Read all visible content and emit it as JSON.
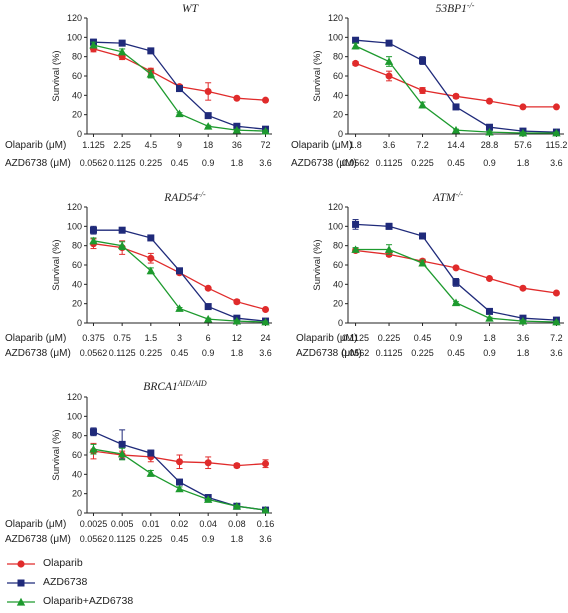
{
  "colors": {
    "Olaparib": "#e02b2b",
    "AZD6738": "#1f2a7a",
    "Olaparib+AZD6738": "#1d9a2e"
  },
  "legend": [
    {
      "name": "Olaparib",
      "marker": "circle"
    },
    {
      "name": "AZD6738",
      "marker": "square"
    },
    {
      "name": "Olaparib+AZD6738",
      "marker": "triangle"
    }
  ],
  "chart_data": [
    {
      "type": "line",
      "title": "WT",
      "title_sup": "",
      "ylabel": "Survival (%)",
      "ylim": [
        0,
        120
      ],
      "yticks": [
        0,
        20,
        40,
        60,
        80,
        100,
        120
      ],
      "row1_label": "Olaparib (μM)",
      "row2_label": "AZD6738 (μM)",
      "row1": [
        "1.125",
        "2.25",
        "4.5",
        "9",
        "18",
        "36",
        "72"
      ],
      "row2": [
        "0.0562",
        "0.1125",
        "0.225",
        "0.45",
        "0.9",
        "1.8",
        "3.6"
      ],
      "series": [
        {
          "name": "Olaparib",
          "values": [
            88,
            80,
            65,
            49,
            44,
            37,
            35
          ],
          "errors": [
            3,
            3,
            3,
            2,
            9,
            1,
            1
          ]
        },
        {
          "name": "AZD6738",
          "values": [
            95,
            94,
            86,
            47,
            19,
            8,
            5
          ],
          "errors": [
            3,
            2,
            1,
            2,
            2,
            2,
            2
          ]
        },
        {
          "name": "Olaparib+AZD6738",
          "values": [
            92,
            85,
            62,
            21,
            8,
            4,
            3
          ],
          "errors": [
            3,
            3,
            4,
            1,
            1,
            1,
            1
          ]
        }
      ]
    },
    {
      "type": "line",
      "title": "53BP1",
      "title_sup": "-/-",
      "ylabel": "Survival (%)",
      "ylim": [
        0,
        120
      ],
      "yticks": [
        0,
        20,
        40,
        60,
        80,
        100,
        120
      ],
      "row1_label": "Olaparib (μM)",
      "row2_label": "AZD6738 (μM)",
      "row1": [
        "1.8",
        "3.6",
        "7.2",
        "14.4",
        "28.8",
        "57.6",
        "115.2"
      ],
      "row2": [
        "0.0562",
        "0.1125",
        "0.225",
        "0.45",
        "0.9",
        "1.8",
        "3.6"
      ],
      "series": [
        {
          "name": "Olaparib",
          "values": [
            73,
            60,
            45,
            39,
            34,
            28,
            28
          ],
          "errors": [
            2,
            5,
            3,
            2,
            1,
            1,
            1
          ]
        },
        {
          "name": "AZD6738",
          "values": [
            97,
            94,
            76,
            28,
            7,
            3,
            2
          ],
          "errors": [
            2,
            2,
            4,
            2,
            1,
            1,
            1
          ]
        },
        {
          "name": "Olaparib+AZD6738",
          "values": [
            91,
            75,
            30,
            4,
            2,
            1,
            1
          ],
          "errors": [
            3,
            5,
            3,
            1,
            1,
            1,
            1
          ]
        }
      ]
    },
    {
      "type": "line",
      "title": "RAD54",
      "title_sup": "-/-",
      "ylabel": "Survival (%)",
      "ylim": [
        0,
        120
      ],
      "yticks": [
        0,
        20,
        40,
        60,
        80,
        100,
        120
      ],
      "row1_label": "Olaparib (μM)",
      "row2_label": "AZD6738 (μM)",
      "row1": [
        "0.375",
        "0.75",
        "1.5",
        "3",
        "6",
        "12",
        "24"
      ],
      "row2": [
        "0.0562",
        "0.1125",
        "0.225",
        "0.45",
        "0.9",
        "1.8",
        "3.6"
      ],
      "series": [
        {
          "name": "Olaparib",
          "values": [
            82,
            78,
            67,
            52,
            36,
            22,
            14
          ],
          "errors": [
            5,
            7,
            5,
            2,
            1,
            2,
            1
          ]
        },
        {
          "name": "AZD6738",
          "values": [
            96,
            96,
            88,
            54,
            17,
            5,
            2
          ],
          "errors": [
            4,
            2,
            2,
            2,
            1,
            1,
            1
          ]
        },
        {
          "name": "Olaparib+AZD6738",
          "values": [
            85,
            80,
            54,
            15,
            4,
            2,
            1
          ],
          "errors": [
            3,
            4,
            3,
            1,
            1,
            1,
            1
          ]
        }
      ]
    },
    {
      "type": "line",
      "title": "ATM",
      "title_sup": "-/-",
      "ylabel": "Survival (%)",
      "ylim": [
        0,
        120
      ],
      "yticks": [
        0,
        20,
        40,
        60,
        80,
        100,
        120
      ],
      "row1_label": "Olaparib (μM)",
      "row2_label": "AZD6738 (μM)",
      "row1": [
        "0.1125",
        "0.225",
        "0.45",
        "0.9",
        "1.8",
        "3.6",
        "7.2"
      ],
      "row2": [
        "0.0562",
        "0.1125",
        "0.225",
        "0.45",
        "0.9",
        "1.8",
        "3.6"
      ],
      "series": [
        {
          "name": "Olaparib",
          "values": [
            75,
            71,
            64,
            57,
            46,
            36,
            31
          ],
          "errors": [
            2,
            2,
            2,
            1,
            1,
            1,
            1
          ]
        },
        {
          "name": "AZD6738",
          "values": [
            102,
            100,
            90,
            42,
            12,
            5,
            3
          ],
          "errors": [
            5,
            3,
            2,
            4,
            1,
            1,
            1
          ]
        },
        {
          "name": "Olaparib+AZD6738",
          "values": [
            76,
            76,
            62,
            21,
            5,
            2,
            1
          ],
          "errors": [
            2,
            5,
            3,
            1,
            1,
            1,
            1
          ]
        }
      ]
    },
    {
      "type": "line",
      "title": "BRCA1",
      "title_sup": "AID/AID",
      "ylabel": "Survival (%)",
      "ylim": [
        0,
        120
      ],
      "yticks": [
        0,
        20,
        40,
        60,
        80,
        100,
        120
      ],
      "row1_label": "Olaparib (μM)",
      "row2_label": "AZD6738 (μM)",
      "row1": [
        "0.0025",
        "0.005",
        "0.01",
        "0.02",
        "0.04",
        "0.08",
        "0.16"
      ],
      "row2": [
        "0.0562",
        "0.1125",
        "0.225",
        "0.45",
        "0.9",
        "1.8",
        "3.6"
      ],
      "series": [
        {
          "name": "Olaparib",
          "values": [
            64,
            60,
            58,
            53,
            52,
            49,
            51
          ],
          "errors": [
            8,
            4,
            5,
            7,
            6,
            2,
            4
          ]
        },
        {
          "name": "AZD6738",
          "values": [
            84,
            71,
            62,
            32,
            16,
            7,
            3
          ],
          "errors": [
            4,
            15,
            3,
            2,
            1,
            1,
            1
          ]
        },
        {
          "name": "Olaparib+AZD6738",
          "values": [
            66,
            61,
            41,
            25,
            14,
            7,
            3
          ],
          "errors": [
            5,
            6,
            3,
            2,
            1,
            1,
            1
          ]
        }
      ]
    }
  ]
}
